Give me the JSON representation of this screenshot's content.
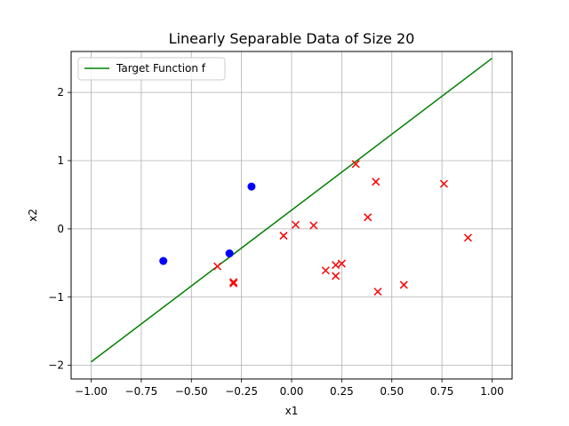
{
  "chart_data": {
    "type": "scatter",
    "title": "Linearly Separable Data of Size 20",
    "xlabel": "x1",
    "ylabel": "x2",
    "xlim": [
      -1.1,
      1.1
    ],
    "ylim": [
      -2.2,
      2.6
    ],
    "xticks": [
      -1.0,
      -0.75,
      -0.5,
      -0.25,
      0.0,
      0.25,
      0.5,
      0.75,
      1.0
    ],
    "xtick_labels": [
      "−1.00",
      "−0.75",
      "−0.50",
      "−0.25",
      "0.00",
      "0.25",
      "0.50",
      "0.75",
      "1.00"
    ],
    "yticks": [
      -2,
      -1,
      0,
      1,
      2
    ],
    "ytick_labels": [
      "−2",
      "−1",
      "0",
      "1",
      "2"
    ],
    "grid": true,
    "legend": {
      "position": "top-left",
      "entries": [
        "Target Function f"
      ]
    },
    "line": {
      "name": "Target Function f",
      "color": "#008000",
      "x": [
        -1.0,
        1.0
      ],
      "y": [
        -1.95,
        2.5
      ]
    },
    "series": [
      {
        "marker": "circle",
        "color": "#0000ff",
        "points": [
          [
            -0.64,
            -0.47
          ],
          [
            -0.31,
            -0.36
          ],
          [
            -0.2,
            0.62
          ]
        ]
      },
      {
        "marker": "x",
        "color": "#ff0000",
        "points": [
          [
            -0.37,
            -0.55
          ],
          [
            -0.29,
            -0.78
          ],
          [
            -0.29,
            -0.8
          ],
          [
            -0.04,
            -0.1
          ],
          [
            0.02,
            0.06
          ],
          [
            0.11,
            0.05
          ],
          [
            0.17,
            -0.61
          ],
          [
            0.22,
            -0.53
          ],
          [
            0.22,
            -0.69
          ],
          [
            0.25,
            -0.51
          ],
          [
            0.32,
            0.95
          ],
          [
            0.38,
            0.17
          ],
          [
            0.42,
            0.69
          ],
          [
            0.43,
            -0.92
          ],
          [
            0.56,
            -0.82
          ],
          [
            0.76,
            0.66
          ],
          [
            0.88,
            -0.13
          ]
        ]
      }
    ]
  }
}
